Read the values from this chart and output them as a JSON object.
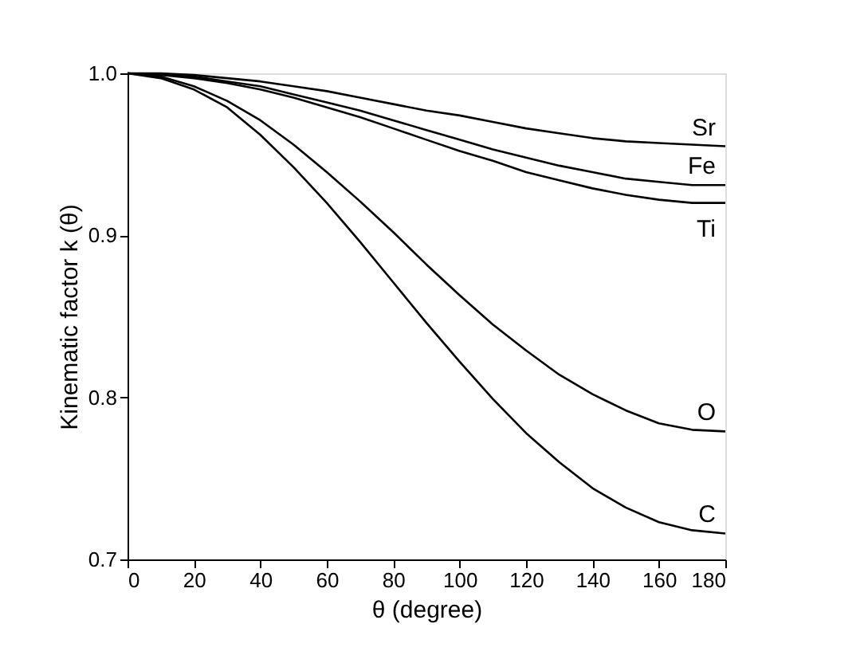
{
  "chart_data": {
    "type": "line",
    "xlabel": "θ (degree)",
    "ylabel": "Kinematic factor k (θ)",
    "x": [
      0,
      10,
      20,
      30,
      40,
      50,
      60,
      70,
      80,
      90,
      100,
      110,
      120,
      130,
      140,
      150,
      160,
      170,
      180
    ],
    "series": [
      {
        "name": "Sr",
        "color": "#000000",
        "values": [
          1.0,
          1.0,
          0.999,
          0.997,
          0.995,
          0.992,
          0.989,
          0.985,
          0.981,
          0.977,
          0.974,
          0.97,
          0.966,
          0.963,
          0.96,
          0.958,
          0.957,
          0.956,
          0.955
        ]
      },
      {
        "name": "Fe",
        "color": "#000000",
        "values": [
          1.0,
          0.999,
          0.998,
          0.995,
          0.992,
          0.987,
          0.982,
          0.977,
          0.971,
          0.965,
          0.959,
          0.953,
          0.948,
          0.943,
          0.939,
          0.935,
          0.933,
          0.931,
          0.931
        ]
      },
      {
        "name": "Ti",
        "color": "#000000",
        "values": [
          1.0,
          0.999,
          0.997,
          0.994,
          0.99,
          0.985,
          0.979,
          0.973,
          0.966,
          0.959,
          0.952,
          0.946,
          0.939,
          0.934,
          0.929,
          0.925,
          0.922,
          0.92,
          0.92
        ]
      },
      {
        "name": "O",
        "color": "#000000",
        "values": [
          1.0,
          0.998,
          0.992,
          0.983,
          0.971,
          0.956,
          0.939,
          0.921,
          0.902,
          0.882,
          0.863,
          0.845,
          0.829,
          0.814,
          0.802,
          0.792,
          0.784,
          0.78,
          0.779
        ]
      },
      {
        "name": "C",
        "color": "#000000",
        "values": [
          1.0,
          0.997,
          0.99,
          0.979,
          0.962,
          0.942,
          0.92,
          0.896,
          0.871,
          0.846,
          0.822,
          0.799,
          0.778,
          0.76,
          0.744,
          0.732,
          0.723,
          0.718,
          0.716
        ]
      }
    ],
    "xlim": [
      0,
      180
    ],
    "xticks": [
      0,
      20,
      40,
      60,
      80,
      100,
      120,
      140,
      160,
      180
    ],
    "ylim": [
      0.7,
      1.0
    ],
    "yticks": [
      {
        "value": 0.7,
        "label": "0.7"
      },
      {
        "value": 0.8,
        "label": "0.8"
      },
      {
        "value": 0.9,
        "label": "0.9"
      },
      {
        "value": 1.0,
        "label": "1.0"
      }
    ],
    "grid": false,
    "legend": false,
    "marker": "none",
    "line_style": "solid"
  }
}
